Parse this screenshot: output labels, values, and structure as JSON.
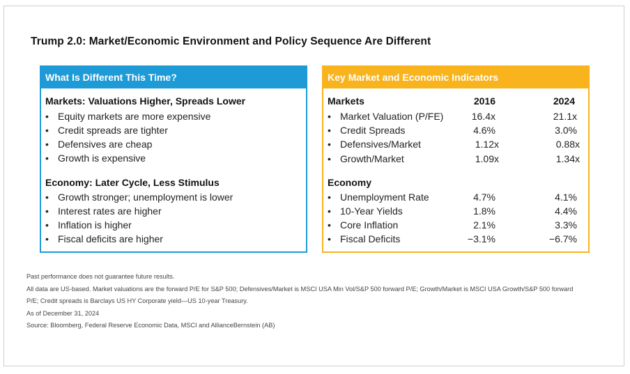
{
  "title": "Trump 2.0: Market/Economic Environment and Policy Sequence Are Different",
  "left_panel": {
    "header": "What Is Different This Time?",
    "sections": [
      {
        "title": "Markets: Valuations Higher, Spreads Lower",
        "items": [
          "Equity markets are more expensive",
          "Credit spreads are tighter",
          "Defensives are cheap",
          "Growth is expensive"
        ]
      },
      {
        "title": "Economy: Later Cycle, Less Stimulus",
        "items": [
          "Growth stronger; unemployment is lower",
          "Interest rates are higher",
          "Inflation is higher",
          "Fiscal deficits are higher"
        ]
      }
    ]
  },
  "right_panel": {
    "header": "Key Market and Economic Indicators",
    "col_2016": "2016",
    "col_2024": "2024",
    "sections": [
      {
        "title": "Markets",
        "rows": [
          {
            "label": "Market Valuation (P/FE)",
            "v2016": "16.4x",
            "v2024": "21.1x"
          },
          {
            "label": "Credit Spreads",
            "v2016": "4.6%",
            "v2024": "3.0%"
          },
          {
            "label": "Defensives/Market",
            "v2016": "1.12x",
            "v2024": "0.88x"
          },
          {
            "label": "Growth/Market",
            "v2016": "1.09x",
            "v2024": "1.34x"
          }
        ]
      },
      {
        "title": "Economy",
        "rows": [
          {
            "label": "Unemployment Rate",
            "v2016": "4.7%",
            "v2024": "4.1%"
          },
          {
            "label": "10-Year Yields",
            "v2016": "1.8%",
            "v2024": "4.4%"
          },
          {
            "label": "Core Inflation",
            "v2016": "2.1%",
            "v2024": "3.3%"
          },
          {
            "label": "Fiscal Deficits",
            "v2016": "−3.1%",
            "v2024": "−6.7%"
          }
        ]
      }
    ]
  },
  "bullet_char": "•",
  "notes": [
    "Past performance does not guarantee future results.",
    "All data are US-based. Market valuations are the forward P/E for S&P 500; Defensives/Market is MSCI USA Min Vol/S&P 500 forward P/E; Growth/Market is MSCI USA Growth/S&P 500 forward",
    "P/E; Credit spreads is Barclays US HY Corporate yield—US 10-year Treasury.",
    "As of December 31, 2024",
    "Source: Bloomberg, Federal Reserve Economic Data, MSCI and AllianceBernstein (AB)"
  ],
  "colors": {
    "left_accent": "#1e9bd7",
    "right_accent": "#f9b31c"
  }
}
